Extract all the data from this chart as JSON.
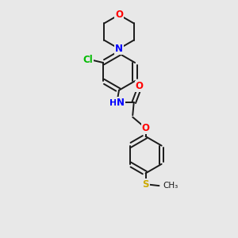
{
  "background_color": "#e8e8e8",
  "bond_color": "#1a1a1a",
  "atom_colors": {
    "O": "#ff0000",
    "N": "#0000ff",
    "Cl": "#00bb00",
    "S": "#ccaa00",
    "H": "#0000ff",
    "C": "#1a1a1a"
  },
  "figsize": [
    3.0,
    3.0
  ],
  "dpi": 100,
  "xlim": [
    0,
    10
  ],
  "ylim": [
    0,
    10
  ]
}
